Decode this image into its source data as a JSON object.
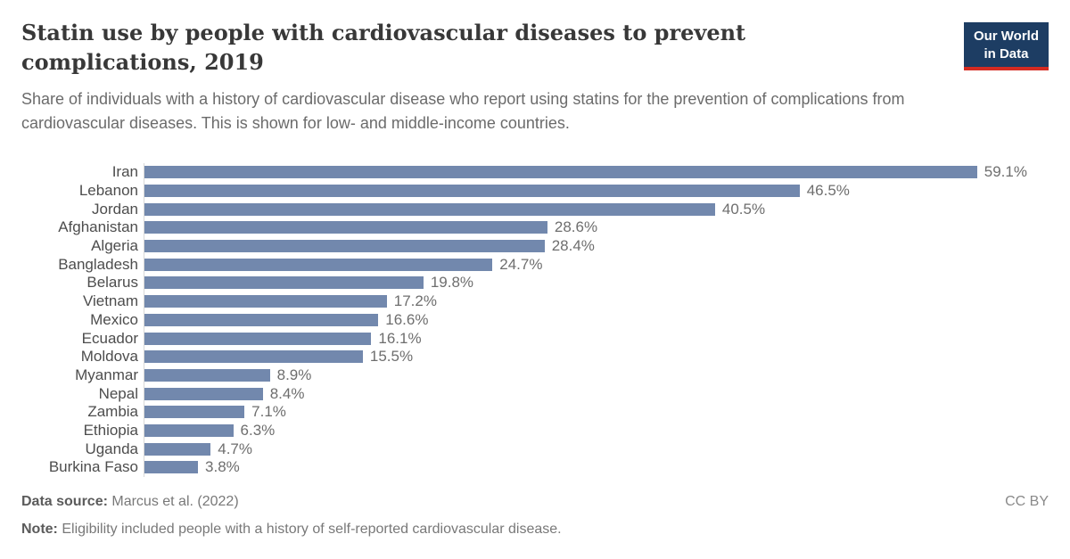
{
  "header": {
    "title": "Statin use by people with cardiovascular diseases to prevent complications, 2019",
    "subtitle": "Share of individuals with a history of cardiovascular disease who report using statins for the prevention of complications from cardiovascular diseases. This is shown for low- and middle-income countries.",
    "logo": {
      "line1": "Our World",
      "line2": "in Data"
    }
  },
  "chart_data": {
    "type": "bar",
    "orientation": "horizontal",
    "title": "Statin use by people with cardiovascular diseases to prevent complications, 2019",
    "categories": [
      "Iran",
      "Lebanon",
      "Jordan",
      "Afghanistan",
      "Algeria",
      "Bangladesh",
      "Belarus",
      "Vietnam",
      "Mexico",
      "Ecuador",
      "Moldova",
      "Myanmar",
      "Nepal",
      "Zambia",
      "Ethiopia",
      "Uganda",
      "Burkina Faso"
    ],
    "values": [
      59.1,
      46.5,
      40.5,
      28.6,
      28.4,
      24.7,
      19.8,
      17.2,
      16.6,
      16.1,
      15.5,
      8.9,
      8.4,
      7.1,
      6.3,
      4.7,
      3.8
    ],
    "value_labels": [
      "59.1%",
      "46.5%",
      "40.5%",
      "28.6%",
      "28.4%",
      "24.7%",
      "19.8%",
      "17.2%",
      "16.6%",
      "16.1%",
      "15.5%",
      "8.9%",
      "8.4%",
      "7.1%",
      "6.3%",
      "4.7%",
      "3.8%"
    ],
    "unit": "%",
    "xlabel": "",
    "ylabel": "",
    "xlim": [
      0,
      62
    ],
    "grid": false,
    "legend": "none",
    "bar_color": "#7288ad",
    "axis_line_color": "#d8d8d8"
  },
  "footer": {
    "data_source_label": "Data source:",
    "data_source_value": " Marcus et al. (2022)",
    "note_label": "Note:",
    "note_value": " Eligibility included people with a history of self-reported cardiovascular disease.",
    "license": "CC BY"
  },
  "colors": {
    "logo_background": "#1d3d63",
    "logo_underline": "#d42b21",
    "bar": "#7288ad"
  }
}
